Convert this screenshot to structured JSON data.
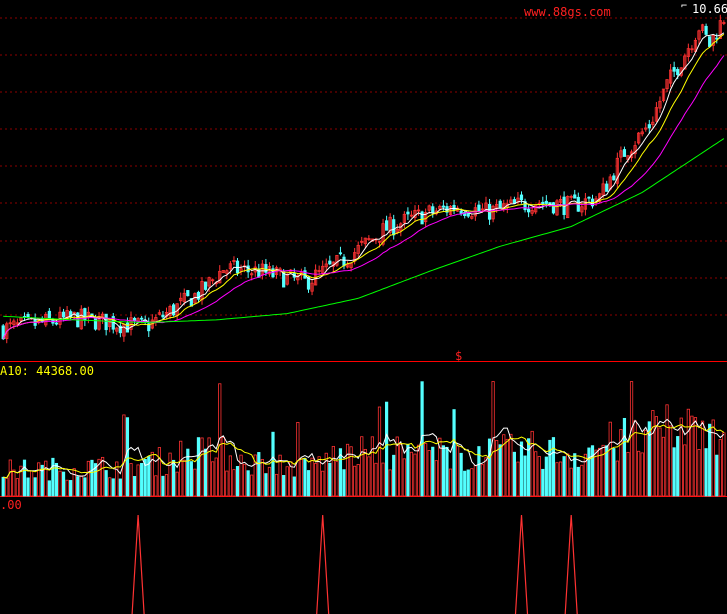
{
  "watermark": "www.88gs.com",
  "colors": {
    "background": "#000000",
    "grid": "#8b0000",
    "divider": "#ff0000",
    "up": "#ff3232",
    "down": "#54ffff",
    "ma_short": "#ffffff",
    "ma_mid": "#ffff00",
    "ma_long": "#ff00ff",
    "ma_longest": "#00ff00",
    "text_red": "#ff2020",
    "text_yellow": "#ffff00",
    "text_white": "#ffffff"
  },
  "chart_data": [
    {
      "type": "candlestick",
      "panel": "price",
      "peak_label": "10.66",
      "marker_label": "$",
      "ylim": [
        6.9,
        10.7
      ],
      "trend_anchors": [
        [
          0,
          7.08
        ],
        [
          20,
          7.2
        ],
        [
          30,
          7.15
        ],
        [
          40,
          7.1
        ],
        [
          56,
          7.5
        ],
        [
          62,
          7.75
        ],
        [
          72,
          7.72
        ],
        [
          85,
          7.6
        ],
        [
          95,
          7.82
        ],
        [
          108,
          8.2
        ],
        [
          118,
          8.35
        ],
        [
          128,
          8.45
        ],
        [
          136,
          8.38
        ],
        [
          150,
          8.5
        ],
        [
          160,
          8.45
        ],
        [
          168,
          8.55
        ],
        [
          175,
          9.05
        ],
        [
          182,
          9.35
        ],
        [
          187,
          9.8
        ],
        [
          192,
          10.15
        ],
        [
          196,
          10.45
        ],
        [
          199,
          10.25
        ],
        [
          203,
          10.55
        ]
      ],
      "ma_long_anchors": [
        [
          0,
          7.22
        ],
        [
          20,
          7.18
        ],
        [
          40,
          7.15
        ],
        [
          60,
          7.18
        ],
        [
          80,
          7.25
        ],
        [
          100,
          7.42
        ],
        [
          120,
          7.72
        ],
        [
          140,
          8.0
        ],
        [
          160,
          8.22
        ],
        [
          180,
          8.6
        ],
        [
          203,
          9.2
        ]
      ]
    },
    {
      "type": "bar",
      "panel": "volume",
      "label": "A10: 44368.00",
      "ylim": [
        0,
        100000
      ],
      "anchors": [
        [
          0,
          22000
        ],
        [
          30,
          25000
        ],
        [
          45,
          30000
        ],
        [
          50,
          36000
        ],
        [
          60,
          38000
        ],
        [
          70,
          30000
        ],
        [
          85,
          25000
        ],
        [
          95,
          35000
        ],
        [
          110,
          38000
        ],
        [
          125,
          36000
        ],
        [
          140,
          37000
        ],
        [
          150,
          40000
        ],
        [
          160,
          36000
        ],
        [
          170,
          45000
        ],
        [
          180,
          50000
        ],
        [
          190,
          58000
        ],
        [
          203,
          62000
        ]
      ]
    },
    {
      "type": "line",
      "panel": "signal",
      "label": ".00",
      "ylim": [
        0,
        1
      ],
      "spikes": [
        38,
        90,
        146,
        160
      ]
    }
  ]
}
